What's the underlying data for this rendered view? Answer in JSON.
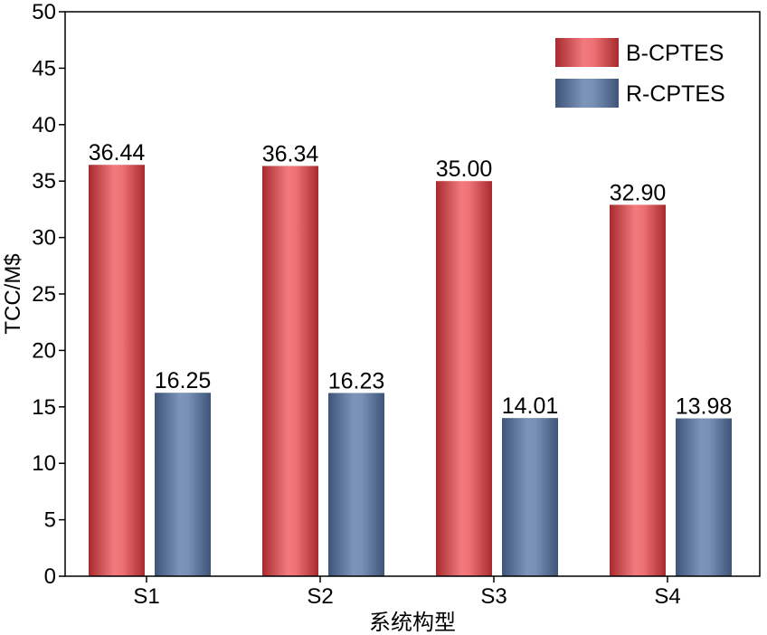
{
  "chart_data": {
    "type": "bar",
    "categories": [
      "S1",
      "S2",
      "S3",
      "S4"
    ],
    "series": [
      {
        "name": "B-CPTES",
        "values": [
          36.44,
          36.34,
          35.0,
          32.9
        ],
        "value_labels": [
          "36.44",
          "36.34",
          "35.00",
          "32.90"
        ],
        "color": "#e8676b"
      },
      {
        "name": "R-CPTES",
        "values": [
          16.25,
          16.23,
          14.01,
          13.98
        ],
        "value_labels": [
          "16.25",
          "16.23",
          "14.01",
          "13.98"
        ],
        "color": "#6f88ad"
      }
    ],
    "xlabel": "系统构型",
    "ylabel": "TCC/M$",
    "ylim": [
      0,
      50
    ],
    "yticks": [
      "0",
      "5",
      "10",
      "15",
      "20",
      "25",
      "30",
      "35",
      "40",
      "45",
      "50"
    ],
    "grid": false,
    "legend": "top-right"
  }
}
